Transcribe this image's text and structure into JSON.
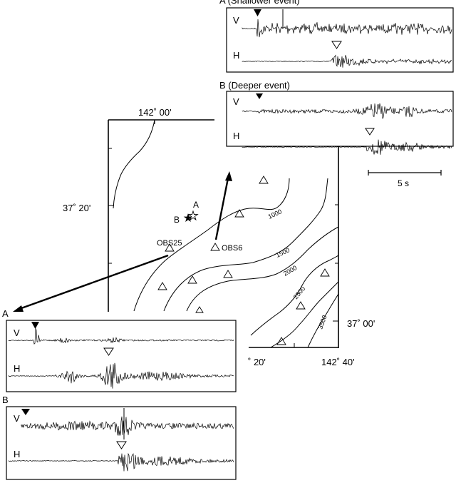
{
  "map": {
    "lon_top": "142˚ 00'",
    "lat_left": "37˚ 20'",
    "lat_right": "37˚ 00'",
    "lon_bottom_left": "˚ 20'",
    "lon_bottom_right": "142˚ 40'",
    "event_a": "A",
    "event_b": "B",
    "station_obs25": "OBS25",
    "station_obs6": "OBS6",
    "contours": [
      "1000",
      "1500",
      "2000",
      "2500",
      "3500"
    ]
  },
  "panels": {
    "top_a_title": "A (Shallower event)",
    "top_b_title": "B (Deeper event)",
    "bottom_a_title": "A",
    "bottom_b_title": "B",
    "vertical": "V",
    "horizontal": "H"
  },
  "scale": {
    "label": "5 s"
  }
}
